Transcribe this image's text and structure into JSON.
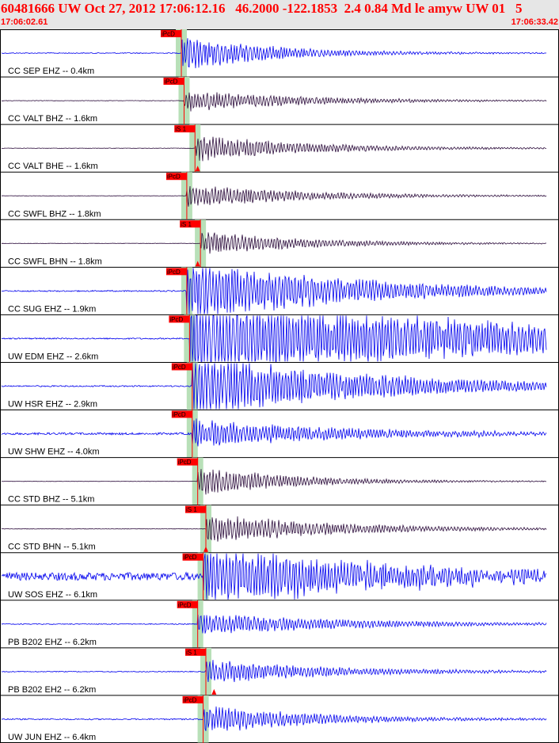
{
  "header": {
    "title": "60481666 UW Oct 27, 2012 17:06:12.16   46.2000 -122.1853  2.4 0.84 Md le amyw UW 01   5",
    "time_start": "17:06:02.61",
    "time_end": "17:06:33.42"
  },
  "colors": {
    "trace_blue": "#0000ee",
    "trace_dark": "#2a0a3a",
    "pick_red": "#ff0000",
    "window_green": "#b8e0b8",
    "header_bg": "#e6e6e6"
  },
  "chart_data": {
    "type": "line",
    "description": "record section of seismograms",
    "time_range": [
      "17:06:02.61",
      "17:06:33.42"
    ],
    "traces": [
      {
        "label": "CC SEP EHZ -- 0.4km",
        "color": "blue",
        "pick": "iPcD",
        "onset": 0.33,
        "amp": 0.9,
        "decay": 4.0,
        "noise": 0.02,
        "sat": false
      },
      {
        "label": "CC VALT BHZ -- 1.6km",
        "color": "dark",
        "pick": "iPcD",
        "onset": 0.335,
        "amp": 0.55,
        "decay": 3.0,
        "noise": 0.01,
        "sat": false
      },
      {
        "label": "CC VALT BHE -- 1.6km",
        "color": "dark",
        "pick": "iS 1",
        "onset": 0.355,
        "amp": 0.65,
        "decay": 3.0,
        "noise": 0.01,
        "sat": false,
        "s": 0.36
      },
      {
        "label": "CC SWFL BHZ -- 1.8km",
        "color": "dark",
        "pick": "iPcD",
        "onset": 0.34,
        "amp": 0.6,
        "decay": 3.0,
        "noise": 0.01,
        "sat": false
      },
      {
        "label": "CC SWFL BHN -- 1.8km",
        "color": "dark",
        "pick": "iS 1",
        "onset": 0.365,
        "amp": 0.6,
        "decay": 3.2,
        "noise": 0.01,
        "sat": false,
        "s": 0.36
      },
      {
        "label": "CC SUG EHZ -- 1.9km",
        "color": "blue",
        "pick": "iPcD",
        "onset": 0.34,
        "amp": 1.6,
        "decay": 2.2,
        "noise": 0.03,
        "sat": true
      },
      {
        "label": "UW EDM EHZ -- 2.6km",
        "color": "blue",
        "pick": "iPcD",
        "onset": 0.345,
        "amp": 2.0,
        "decay": 1.0,
        "noise": 0.03,
        "sat": true
      },
      {
        "label": "UW HSR EHZ -- 2.9km",
        "color": "blue",
        "pick": "iPcD",
        "onset": 0.35,
        "amp": 1.6,
        "decay": 2.0,
        "noise": 0.03,
        "sat": true
      },
      {
        "label": "UW SHW EHZ -- 4.0km",
        "color": "blue",
        "pick": "iPcD",
        "onset": 0.35,
        "amp": 0.7,
        "decay": 2.2,
        "noise": 0.05,
        "sat": false
      },
      {
        "label": "CC STD BHZ -- 5.1km",
        "color": "dark",
        "pick": "iPcD",
        "onset": 0.36,
        "amp": 0.75,
        "decay": 3.6,
        "noise": 0.01,
        "sat": false
      },
      {
        "label": "CC STD BHN -- 5.1km",
        "color": "dark",
        "pick": "iS 1",
        "onset": 0.375,
        "amp": 0.75,
        "decay": 2.6,
        "noise": 0.01,
        "sat": false,
        "s": 0.375
      },
      {
        "label": "UW SOS EHZ -- 6.1km",
        "color": "blue",
        "pick": "iPcD",
        "onset": 0.37,
        "amp": 1.5,
        "decay": 1.8,
        "noise": 0.18,
        "sat": true
      },
      {
        "label": "PB B202 EHZ -- 6.2km",
        "color": "blue",
        "pick": "iPcD",
        "onset": 0.36,
        "amp": 0.55,
        "decay": 2.2,
        "noise": 0.02,
        "sat": false
      },
      {
        "label": "PB B202 EH2 -- 6.2km",
        "color": "blue",
        "pick": "iS 1",
        "onset": 0.375,
        "amp": 0.6,
        "decay": 2.6,
        "noise": 0.02,
        "sat": false,
        "s": 0.39
      },
      {
        "label": "UW JUN EHZ -- 6.4km",
        "color": "blue",
        "pick": "iPcD",
        "onset": 0.37,
        "amp": 0.7,
        "decay": 3.0,
        "noise": 0.03,
        "sat": false
      }
    ]
  }
}
